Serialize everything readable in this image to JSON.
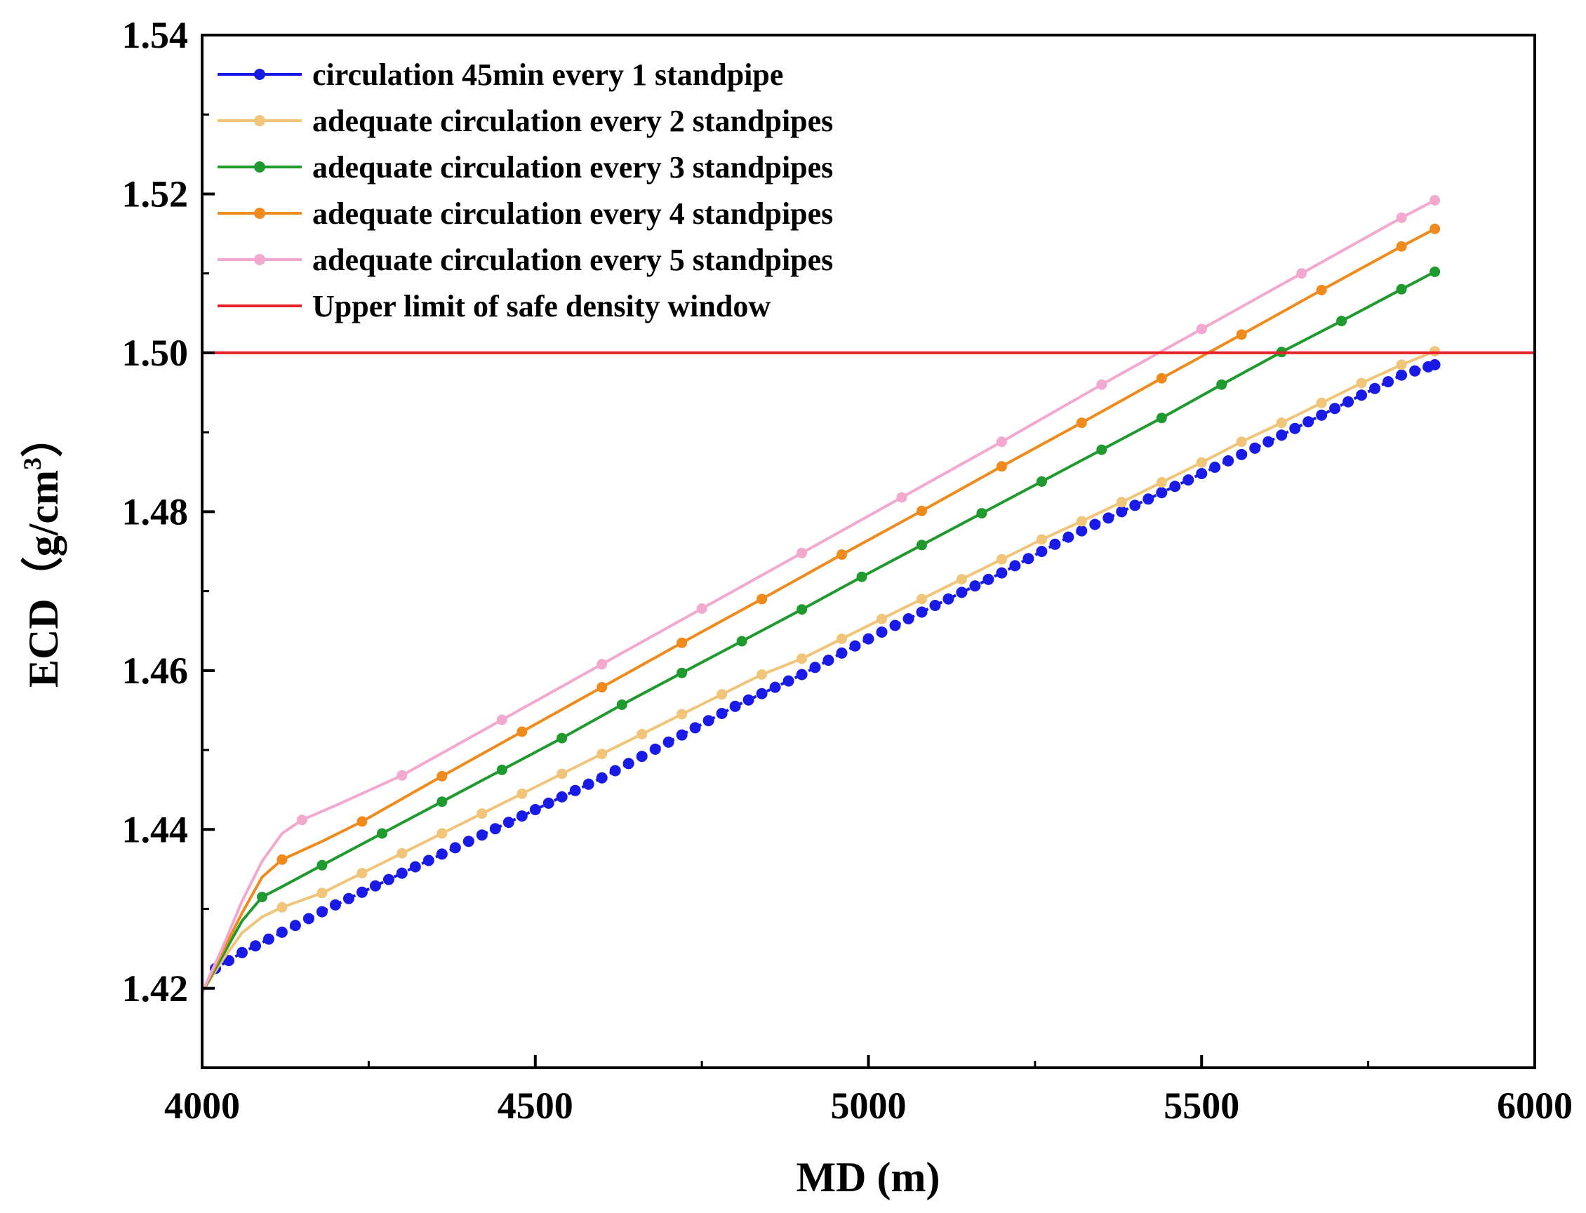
{
  "chart_data": {
    "type": "line",
    "xlabel": "MD (m)",
    "ylabel": "ECD（g/cm",
    "ylabel_sup": "3",
    "ylabel_close": "）",
    "xlim": [
      4000,
      6000
    ],
    "ylim": [
      1.41,
      1.54
    ],
    "x_ticks": [
      4000,
      4500,
      5000,
      5500,
      6000
    ],
    "x_tick_labels": [
      "4000",
      "4500",
      "5000",
      "5500",
      "6000"
    ],
    "y_ticks": [
      1.42,
      1.44,
      1.46,
      1.48,
      1.5,
      1.52,
      1.54
    ],
    "y_tick_labels": [
      "1.42",
      "1.44",
      "1.46",
      "1.48",
      "1.50",
      "1.52",
      "1.54"
    ],
    "legend_position": "top-left",
    "series": [
      {
        "name": "circulation 45min every 1 standpipe",
        "color": "#1a1ae6",
        "dotted": true,
        "curve": [
          [
            4020,
            1.4225
          ],
          [
            4060,
            1.4245
          ],
          [
            4100,
            1.4262
          ],
          [
            4200,
            1.4305
          ],
          [
            4300,
            1.4345
          ],
          [
            4400,
            1.4385
          ],
          [
            4500,
            1.4425
          ],
          [
            4600,
            1.4465
          ],
          [
            4700,
            1.451
          ],
          [
            4800,
            1.4555
          ],
          [
            4900,
            1.4595
          ],
          [
            5000,
            1.464
          ],
          [
            5100,
            1.4682
          ],
          [
            5200,
            1.4723
          ],
          [
            5300,
            1.4768
          ],
          [
            5400,
            1.4808
          ],
          [
            5500,
            1.4848
          ],
          [
            5600,
            1.4888
          ],
          [
            5700,
            1.493
          ],
          [
            5800,
            1.4972
          ],
          [
            5850,
            1.4985
          ]
        ],
        "markers_x": [
          4020,
          4040,
          4060,
          4080,
          4100,
          4120,
          4140,
          4160,
          4180,
          4200,
          4220,
          4240,
          4260,
          4280,
          4300,
          4320,
          4340,
          4360,
          4380,
          4400,
          4420,
          4440,
          4460,
          4480,
          4500,
          4520,
          4540,
          4560,
          4580,
          4600,
          4620,
          4640,
          4660,
          4680,
          4700,
          4720,
          4740,
          4760,
          4780,
          4800,
          4820,
          4840,
          4860,
          4880,
          4900,
          4920,
          4940,
          4960,
          4980,
          5000,
          5020,
          5040,
          5060,
          5080,
          5100,
          5120,
          5140,
          5160,
          5180,
          5200,
          5220,
          5240,
          5260,
          5280,
          5300,
          5320,
          5340,
          5360,
          5380,
          5400,
          5420,
          5440,
          5460,
          5480,
          5500,
          5520,
          5540,
          5560,
          5580,
          5600,
          5620,
          5640,
          5660,
          5680,
          5700,
          5720,
          5740,
          5760,
          5780,
          5800,
          5820,
          5840,
          5850
        ]
      },
      {
        "name": "adequate circulation  every 2 standpipes",
        "color": "#f0c57a",
        "dotted": false,
        "curve": [
          [
            4000,
            1.4195
          ],
          [
            4030,
            1.4235
          ],
          [
            4060,
            1.427
          ],
          [
            4090,
            1.429
          ],
          [
            4120,
            1.4302
          ],
          [
            4180,
            1.432
          ],
          [
            4240,
            1.4345
          ],
          [
            4300,
            1.437
          ],
          [
            4360,
            1.4395
          ],
          [
            4420,
            1.442
          ],
          [
            4480,
            1.4445
          ],
          [
            4540,
            1.447
          ],
          [
            4600,
            1.4495
          ],
          [
            4660,
            1.452
          ],
          [
            4720,
            1.4545
          ],
          [
            4780,
            1.457
          ],
          [
            4840,
            1.4595
          ],
          [
            4900,
            1.4615
          ],
          [
            4960,
            1.464
          ],
          [
            5020,
            1.4665
          ],
          [
            5080,
            1.469
          ],
          [
            5140,
            1.4715
          ],
          [
            5200,
            1.474
          ],
          [
            5260,
            1.4765
          ],
          [
            5320,
            1.4788
          ],
          [
            5380,
            1.4812
          ],
          [
            5440,
            1.4837
          ],
          [
            5500,
            1.4862
          ],
          [
            5560,
            1.4888
          ],
          [
            5620,
            1.4912
          ],
          [
            5680,
            1.4937
          ],
          [
            5740,
            1.4962
          ],
          [
            5800,
            1.4985
          ],
          [
            5850,
            1.5002
          ]
        ],
        "markers_x": [
          4120,
          4180,
          4240,
          4300,
          4360,
          4420,
          4480,
          4540,
          4600,
          4660,
          4720,
          4780,
          4840,
          4900,
          4960,
          5020,
          5080,
          5140,
          5200,
          5260,
          5320,
          5380,
          5440,
          5500,
          5560,
          5620,
          5680,
          5740,
          5800,
          5850
        ]
      },
      {
        "name": "adequate circulation  every 3 standpipes",
        "color": "#1f9a2e",
        "dotted": false,
        "curve": [
          [
            4000,
            1.4195
          ],
          [
            4030,
            1.424
          ],
          [
            4060,
            1.4285
          ],
          [
            4090,
            1.4315
          ],
          [
            4120,
            1.4328
          ],
          [
            4180,
            1.4355
          ],
          [
            4270,
            1.4395
          ],
          [
            4360,
            1.4435
          ],
          [
            4450,
            1.4475
          ],
          [
            4540,
            1.4515
          ],
          [
            4630,
            1.4557
          ],
          [
            4720,
            1.4597
          ],
          [
            4810,
            1.4637
          ],
          [
            4900,
            1.4677
          ],
          [
            4990,
            1.4718
          ],
          [
            5080,
            1.4758
          ],
          [
            5170,
            1.4798
          ],
          [
            5260,
            1.4838
          ],
          [
            5350,
            1.4878
          ],
          [
            5440,
            1.4918
          ],
          [
            5530,
            1.496
          ],
          [
            5620,
            1.5001
          ],
          [
            5710,
            1.504
          ],
          [
            5800,
            1.508
          ],
          [
            5850,
            1.5102
          ]
        ],
        "markers_x": [
          4090,
          4180,
          4270,
          4360,
          4450,
          4540,
          4630,
          4720,
          4810,
          4900,
          4990,
          5080,
          5170,
          5260,
          5350,
          5440,
          5530,
          5620,
          5710,
          5800,
          5850
        ]
      },
      {
        "name": "adequate circulation  every 4 standpipes",
        "color": "#f08a1c",
        "dotted": false,
        "curve": [
          [
            4000,
            1.4195
          ],
          [
            4030,
            1.4245
          ],
          [
            4060,
            1.4295
          ],
          [
            4090,
            1.434
          ],
          [
            4120,
            1.4362
          ],
          [
            4180,
            1.4385
          ],
          [
            4240,
            1.441
          ],
          [
            4360,
            1.4467
          ],
          [
            4480,
            1.4523
          ],
          [
            4600,
            1.4579
          ],
          [
            4720,
            1.4635
          ],
          [
            4840,
            1.469
          ],
          [
            4960,
            1.4746
          ],
          [
            5080,
            1.4801
          ],
          [
            5200,
            1.4857
          ],
          [
            5320,
            1.4912
          ],
          [
            5440,
            1.4968
          ],
          [
            5560,
            1.5023
          ],
          [
            5680,
            1.5079
          ],
          [
            5800,
            1.5134
          ],
          [
            5850,
            1.5156
          ]
        ],
        "markers_x": [
          4120,
          4240,
          4360,
          4480,
          4600,
          4720,
          4840,
          4960,
          5080,
          5200,
          5320,
          5440,
          5560,
          5680,
          5800,
          5850
        ]
      },
      {
        "name": "adequate circulation  every 5 standpipes",
        "color": "#f2a8cf",
        "dotted": false,
        "curve": [
          [
            4000,
            1.4195
          ],
          [
            4030,
            1.425
          ],
          [
            4060,
            1.431
          ],
          [
            4090,
            1.436
          ],
          [
            4120,
            1.4395
          ],
          [
            4150,
            1.4412
          ],
          [
            4200,
            1.443
          ],
          [
            4300,
            1.4468
          ],
          [
            4450,
            1.4538
          ],
          [
            4600,
            1.4608
          ],
          [
            4750,
            1.4678
          ],
          [
            4900,
            1.4748
          ],
          [
            5050,
            1.4818
          ],
          [
            5200,
            1.4888
          ],
          [
            5350,
            1.496
          ],
          [
            5500,
            1.503
          ],
          [
            5650,
            1.51
          ],
          [
            5800,
            1.517
          ],
          [
            5850,
            1.5192
          ]
        ],
        "markers_x": [
          4150,
          4300,
          4450,
          4600,
          4750,
          4900,
          5050,
          5200,
          5350,
          5500,
          5650,
          5800,
          5850
        ]
      },
      {
        "name": "Upper limit of safe density window",
        "color": "#e8202a",
        "dotted": false,
        "curve": [
          [
            4000,
            1.5
          ],
          [
            6000,
            1.5
          ]
        ],
        "markers_x": []
      }
    ]
  }
}
